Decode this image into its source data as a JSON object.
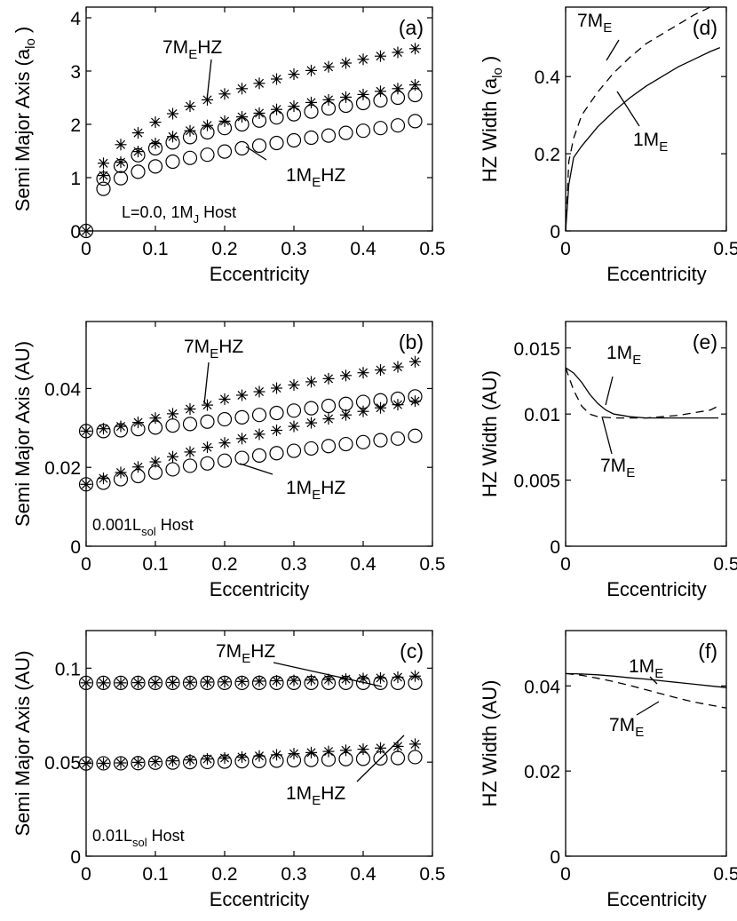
{
  "chart_data": [
    {
      "id": "a",
      "type": "scatter",
      "panel_label": "(a)",
      "xlabel": "Eccentricity",
      "ylabel": "Semi Major Axis (a_lo)",
      "ylabel_parts": {
        "main": "Semi Major Axis (a",
        "sub": "lo",
        "end": ")"
      },
      "xlim": [
        0,
        0.5
      ],
      "ylim": [
        0,
        4.2
      ],
      "xticks": [
        "0",
        "0.1",
        "0.2",
        "0.3",
        "0.4",
        "0.5"
      ],
      "yticks": [
        "0",
        "1",
        "2",
        "3",
        "4"
      ],
      "x": [
        0.025,
        0.05,
        0.075,
        0.1,
        0.125,
        0.15,
        0.175,
        0.2,
        0.225,
        0.25,
        0.275,
        0.3,
        0.325,
        0.35,
        0.375,
        0.4,
        0.425,
        0.45,
        0.475
      ],
      "series": [
        {
          "name": "7MEHZ upper",
          "marker": "star",
          "x0": [
            0
          ],
          "y0": [
            0
          ],
          "values": [
            1.27,
            1.62,
            1.84,
            2.04,
            2.2,
            2.34,
            2.46,
            2.57,
            2.67,
            2.77,
            2.85,
            2.94,
            3.01,
            3.08,
            3.15,
            3.22,
            3.28,
            3.35,
            3.42
          ]
        },
        {
          "name": "7MEHZ lower",
          "marker": "star",
          "values": [
            1.04,
            1.29,
            1.49,
            1.64,
            1.77,
            1.88,
            1.98,
            2.06,
            2.14,
            2.21,
            2.28,
            2.34,
            2.41,
            2.46,
            2.51,
            2.56,
            2.62,
            2.67,
            2.74
          ]
        },
        {
          "name": "1MEHZ upper",
          "marker": "circle",
          "x0": [
            0
          ],
          "y0": [
            0
          ],
          "values": [
            0.98,
            1.22,
            1.42,
            1.55,
            1.66,
            1.76,
            1.85,
            1.93,
            2.0,
            2.07,
            2.13,
            2.19,
            2.24,
            2.3,
            2.35,
            2.4,
            2.45,
            2.5,
            2.55
          ]
        },
        {
          "name": "1MEHZ lower",
          "marker": "circle",
          "values": [
            0.79,
            0.99,
            1.11,
            1.21,
            1.3,
            1.37,
            1.43,
            1.49,
            1.55,
            1.6,
            1.65,
            1.7,
            1.75,
            1.79,
            1.84,
            1.88,
            1.93,
            1.98,
            2.06
          ]
        }
      ],
      "annotations": [
        {
          "id": "ann_a_7",
          "parts": [
            [
              "7M",
              ""
            ],
            [
              "E",
              "sub"
            ],
            [
              "HZ",
              ""
            ]
          ]
        },
        {
          "id": "ann_a_1",
          "parts": [
            [
              "1M",
              ""
            ],
            [
              "E",
              "sub"
            ],
            [
              "HZ",
              ""
            ]
          ]
        },
        {
          "id": "ann_a_host",
          "parts": [
            [
              "L=0.0, 1M",
              ""
            ],
            [
              "J",
              "sub"
            ],
            [
              " Host",
              ""
            ]
          ]
        }
      ]
    },
    {
      "id": "b",
      "type": "scatter",
      "panel_label": "(b)",
      "xlabel": "Eccentricity",
      "ylabel": "Semi Major Axis (AU)",
      "xlim": [
        0,
        0.5
      ],
      "ylim": [
        0,
        0.057
      ],
      "xticks": [
        "0",
        "0.1",
        "0.2",
        "0.3",
        "0.4",
        "0.5"
      ],
      "yticks": [
        "0",
        "0.02",
        "0.04"
      ],
      "x": [
        0,
        0.025,
        0.05,
        0.075,
        0.1,
        0.125,
        0.15,
        0.175,
        0.2,
        0.225,
        0.25,
        0.275,
        0.3,
        0.325,
        0.35,
        0.375,
        0.4,
        0.425,
        0.45,
        0.475
      ],
      "series": [
        {
          "name": "7MEHZ upper",
          "marker": "star",
          "values": [
            0.0292,
            0.0298,
            0.0304,
            0.0314,
            0.0325,
            0.0336,
            0.0348,
            0.0358,
            0.0373,
            0.0383,
            0.0392,
            0.0401,
            0.0409,
            0.0417,
            0.0425,
            0.0433,
            0.044,
            0.0447,
            0.0455,
            0.0468
          ]
        },
        {
          "name": "7MEHZ lower",
          "marker": "star",
          "values": [
            0.0157,
            0.0172,
            0.0187,
            0.0201,
            0.0214,
            0.0227,
            0.0239,
            0.0251,
            0.0262,
            0.0273,
            0.0284,
            0.0294,
            0.0304,
            0.0313,
            0.0323,
            0.0333,
            0.0342,
            0.0351,
            0.0359,
            0.0368
          ]
        },
        {
          "name": "1MEHZ upper",
          "marker": "circle",
          "values": [
            0.0292,
            0.0292,
            0.0294,
            0.0297,
            0.0301,
            0.0306,
            0.031,
            0.0316,
            0.0322,
            0.0327,
            0.0333,
            0.0338,
            0.0344,
            0.035,
            0.0356,
            0.0361,
            0.0366,
            0.037,
            0.0374,
            0.038
          ]
        },
        {
          "name": "1MEHZ lower",
          "marker": "circle",
          "values": [
            0.0157,
            0.0161,
            0.017,
            0.0178,
            0.0187,
            0.0195,
            0.0204,
            0.021,
            0.0217,
            0.0224,
            0.023,
            0.0236,
            0.0242,
            0.0248,
            0.0254,
            0.0259,
            0.0264,
            0.0269,
            0.0273,
            0.028
          ]
        }
      ],
      "annotations": [
        {
          "id": "ann_b_7",
          "parts": [
            [
              "7M",
              ""
            ],
            [
              "E",
              "sub"
            ],
            [
              "HZ",
              ""
            ]
          ]
        },
        {
          "id": "ann_b_1",
          "parts": [
            [
              "1M",
              ""
            ],
            [
              "E",
              "sub"
            ],
            [
              "HZ",
              ""
            ]
          ]
        },
        {
          "id": "ann_b_host",
          "parts": [
            [
              "0.001L",
              ""
            ],
            [
              "sol",
              "sub"
            ],
            [
              " Host",
              ""
            ]
          ]
        }
      ]
    },
    {
      "id": "c",
      "type": "scatter",
      "panel_label": "(c)",
      "xlabel": "Eccentricity",
      "ylabel": "Semi Major Axis (AU)",
      "xlim": [
        0,
        0.5
      ],
      "ylim": [
        0,
        0.12
      ],
      "xticks": [
        "0",
        "0.1",
        "0.2",
        "0.3",
        "0.4",
        "0.5"
      ],
      "yticks": [
        "0",
        "0.05",
        "0.1"
      ],
      "x": [
        0,
        0.025,
        0.05,
        0.075,
        0.1,
        0.125,
        0.15,
        0.175,
        0.2,
        0.225,
        0.25,
        0.275,
        0.3,
        0.325,
        0.35,
        0.375,
        0.4,
        0.425,
        0.45,
        0.475
      ],
      "series": [
        {
          "name": "7MEHZ upper",
          "marker": "star",
          "values": [
            0.0922,
            0.0922,
            0.0922,
            0.0923,
            0.0923,
            0.0924,
            0.0925,
            0.0926,
            0.0927,
            0.0929,
            0.0931,
            0.0933,
            0.0935,
            0.0937,
            0.094,
            0.0942,
            0.0945,
            0.0948,
            0.0952,
            0.0958
          ]
        },
        {
          "name": "7MEHZ lower",
          "marker": "star",
          "values": [
            0.0493,
            0.0494,
            0.0496,
            0.0499,
            0.0503,
            0.0507,
            0.0512,
            0.0517,
            0.0522,
            0.0527,
            0.0533,
            0.0539,
            0.0545,
            0.0551,
            0.0557,
            0.0563,
            0.0569,
            0.0575,
            0.0584,
            0.0596
          ]
        },
        {
          "name": "1MEHZ upper",
          "marker": "circle",
          "values": [
            0.0922,
            0.0922,
            0.0922,
            0.0922,
            0.0922,
            0.0922,
            0.0922,
            0.0922,
            0.0922,
            0.0922,
            0.0922,
            0.0922,
            0.0922,
            0.0922,
            0.0922,
            0.0922,
            0.0922,
            0.0922,
            0.0922,
            0.0922
          ]
        },
        {
          "name": "1MEHZ lower",
          "marker": "circle",
          "values": [
            0.0493,
            0.0494,
            0.0494,
            0.0495,
            0.0497,
            0.0498,
            0.05,
            0.0501,
            0.0503,
            0.0505,
            0.0506,
            0.0508,
            0.051,
            0.0512,
            0.0514,
            0.0516,
            0.0518,
            0.052,
            0.0522,
            0.0527
          ]
        }
      ],
      "annotations": [
        {
          "id": "ann_c_7",
          "parts": [
            [
              "7M",
              ""
            ],
            [
              "E",
              "sub"
            ],
            [
              "HZ",
              ""
            ]
          ]
        },
        {
          "id": "ann_c_1",
          "parts": [
            [
              "1M",
              ""
            ],
            [
              "E",
              "sub"
            ],
            [
              "HZ",
              ""
            ]
          ]
        },
        {
          "id": "ann_c_host",
          "parts": [
            [
              "0.01L",
              ""
            ],
            [
              "sol",
              "sub"
            ],
            [
              " Host",
              ""
            ]
          ]
        }
      ]
    },
    {
      "id": "d",
      "type": "line",
      "panel_label": "(d)",
      "xlabel": "Eccentricity",
      "ylabel": "HZ Width (a_lo)",
      "ylabel_parts": {
        "main": "HZ Width (a",
        "sub": "lo",
        "end": ")"
      },
      "xlim": [
        0,
        0.5
      ],
      "ylim": [
        0,
        0.58
      ],
      "xticks": [
        "0",
        "0.5"
      ],
      "yticks": [
        "0",
        "0.2",
        "0.4"
      ],
      "series": [
        {
          "name": "7ME",
          "style": "dashed",
          "x": [
            0,
            0.01,
            0.025,
            0.05,
            0.1,
            0.15,
            0.2,
            0.25,
            0.3,
            0.35,
            0.4,
            0.45
          ],
          "values": [
            0,
            0.18,
            0.24,
            0.3,
            0.36,
            0.41,
            0.45,
            0.485,
            0.51,
            0.535,
            0.56,
            0.58
          ]
        },
        {
          "name": "1ME",
          "style": "solid",
          "x": [
            0,
            0.01,
            0.025,
            0.05,
            0.1,
            0.15,
            0.2,
            0.25,
            0.3,
            0.35,
            0.4,
            0.45,
            0.48
          ],
          "values": [
            0,
            0.12,
            0.19,
            0.22,
            0.27,
            0.31,
            0.345,
            0.375,
            0.4,
            0.425,
            0.445,
            0.465,
            0.475
          ]
        }
      ],
      "annotations": [
        {
          "id": "ann_d_7",
          "parts": [
            [
              "7M",
              ""
            ],
            [
              "E",
              "sub"
            ]
          ]
        },
        {
          "id": "ann_d_1",
          "parts": [
            [
              "1M",
              ""
            ],
            [
              "E",
              "sub"
            ]
          ]
        }
      ]
    },
    {
      "id": "e",
      "type": "line",
      "panel_label": "(e)",
      "xlabel": "Eccentricity",
      "ylabel": "HZ Width (AU)",
      "xlim": [
        0,
        0.5
      ],
      "ylim": [
        0,
        0.017
      ],
      "xticks": [
        "0",
        "0.5"
      ],
      "yticks": [
        "0",
        "0.005",
        "0.01",
        "0.015"
      ],
      "series": [
        {
          "name": "1ME",
          "style": "solid",
          "x": [
            0,
            0.025,
            0.05,
            0.075,
            0.1,
            0.125,
            0.15,
            0.2,
            0.25,
            0.3,
            0.35,
            0.4,
            0.45,
            0.475
          ],
          "values": [
            0.0135,
            0.0131,
            0.0124,
            0.0115,
            0.0108,
            0.0103,
            0.01,
            0.0098,
            0.0097,
            0.0097,
            0.0097,
            0.0097,
            0.0097,
            0.0097
          ]
        },
        {
          "name": "7ME",
          "style": "dashed",
          "x": [
            0,
            0.025,
            0.05,
            0.075,
            0.1,
            0.15,
            0.2,
            0.25,
            0.3,
            0.35,
            0.4,
            0.45,
            0.475
          ],
          "values": [
            0.0135,
            0.0118,
            0.0106,
            0.01,
            0.0098,
            0.0097,
            0.0097,
            0.0097,
            0.0098,
            0.0099,
            0.0101,
            0.0103,
            0.0106
          ]
        }
      ],
      "annotations": [
        {
          "id": "ann_e_1",
          "parts": [
            [
              "1M",
              ""
            ],
            [
              "E",
              "sub"
            ]
          ]
        },
        {
          "id": "ann_e_7",
          "parts": [
            [
              "7M",
              ""
            ],
            [
              "E",
              "sub"
            ]
          ]
        }
      ]
    },
    {
      "id": "f",
      "type": "line",
      "panel_label": "(f)",
      "xlabel": "Eccentricity",
      "ylabel": "HZ Width (AU)",
      "xlim": [
        0,
        0.5
      ],
      "ylim": [
        0,
        0.053
      ],
      "xticks": [
        "0",
        "0.5"
      ],
      "yticks": [
        "0",
        "0.02",
        "0.04"
      ],
      "series": [
        {
          "name": "1ME",
          "style": "solid",
          "x": [
            0,
            0.05,
            0.1,
            0.15,
            0.2,
            0.25,
            0.3,
            0.35,
            0.4,
            0.45,
            0.5
          ],
          "values": [
            0.0429,
            0.0428,
            0.0426,
            0.0423,
            0.0419,
            0.0416,
            0.0412,
            0.0408,
            0.0404,
            0.04,
            0.0396
          ]
        },
        {
          "name": "7ME",
          "style": "dashed",
          "x": [
            0,
            0.05,
            0.1,
            0.15,
            0.2,
            0.25,
            0.3,
            0.35,
            0.4,
            0.45,
            0.5
          ],
          "values": [
            0.0429,
            0.0425,
            0.0418,
            0.041,
            0.0401,
            0.0391,
            0.0381,
            0.0371,
            0.0362,
            0.0355,
            0.0348
          ]
        }
      ],
      "annotations": [
        {
          "id": "ann_f_1",
          "parts": [
            [
              "1M",
              ""
            ],
            [
              "E",
              "sub"
            ]
          ]
        },
        {
          "id": "ann_f_7",
          "parts": [
            [
              "7M",
              ""
            ],
            [
              "E",
              "sub"
            ]
          ]
        }
      ]
    }
  ]
}
